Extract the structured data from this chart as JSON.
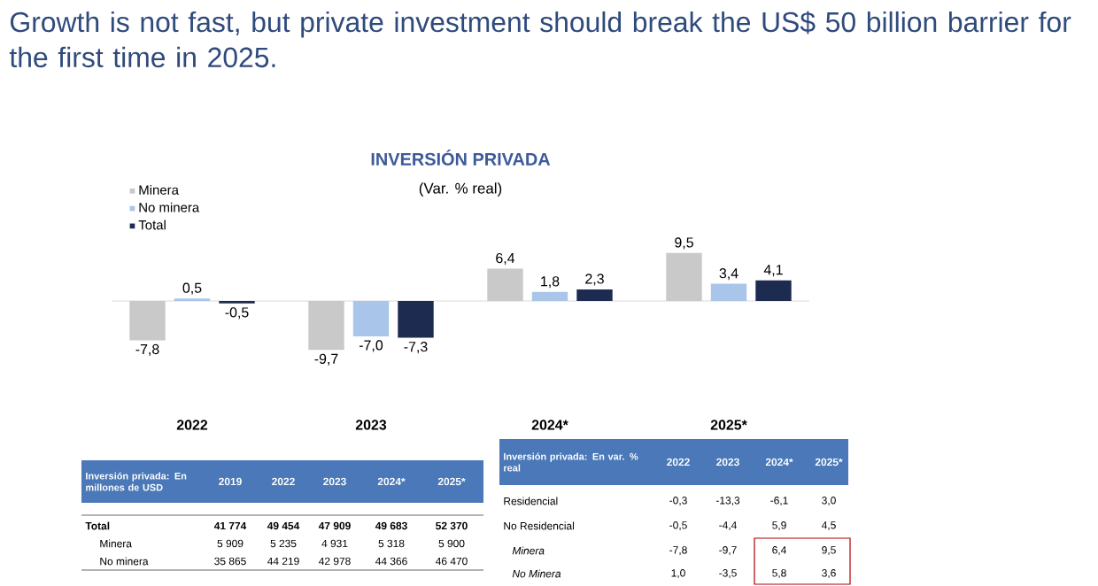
{
  "chart_data": {
    "type": "bar",
    "title": "INVERSIÓN PRIVADA",
    "subtitle": "(Var. % real)",
    "categories": [
      "2022",
      "2023",
      "2024*",
      "2025*"
    ],
    "legend": "top left",
    "series": [
      {
        "name": "Minera",
        "color": "#c9c9c9",
        "values": [
          -7.8,
          -9.7,
          6.4,
          9.5
        ],
        "value_labels": [
          "-7,8",
          "-9,7",
          "6,4",
          "9,5"
        ]
      },
      {
        "name": "No minera",
        "color": "#a9c5e9",
        "values": [
          0.5,
          -7.0,
          1.8,
          3.4
        ],
        "value_labels": [
          "0,5",
          "-7,0",
          "1,8",
          "3,4"
        ]
      },
      {
        "name": "Total",
        "color": "#1c2b4f",
        "values": [
          -0.5,
          -7.3,
          2.3,
          4.1
        ],
        "value_labels": [
          "-0,5",
          "-7,3",
          "2,3",
          "4,1"
        ]
      }
    ],
    "annotations": [
      "Growth is not fast, but private investment should break the US$ 50 billion barrier for the first time in 2025.",
      "Inversión privada: En millones de USD",
      "2019",
      "2022",
      "2023",
      "2024*",
      "2025*",
      "Total",
      "41 774",
      "49 454",
      "47 909",
      "49 683",
      "52 370",
      "Minera",
      "5 909",
      "5 235",
      "4 931",
      "5 318",
      "5 900",
      "No minera",
      "35 865",
      "44 219",
      "42 978",
      "44 366",
      "46 470",
      "Inversión privada: En var. % real",
      "2022",
      "2023",
      "2024*",
      "2025*",
      "Residencial",
      "-0,3",
      "-13,3",
      "-6,1",
      "3,0",
      "No Residencial",
      "-0,5",
      "-4,4",
      "5,9",
      "4,5",
      "Minera",
      "-7,8",
      "-9,7",
      "6,4",
      "9,5",
      "No Minera",
      "1,0",
      "-3,5",
      "5,8",
      "3,6"
    ]
  }
}
